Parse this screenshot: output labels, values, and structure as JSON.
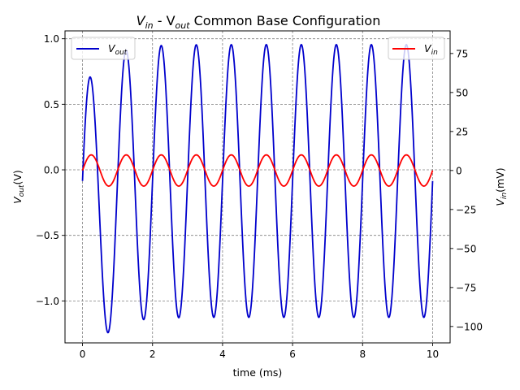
{
  "chart_data": {
    "type": "line",
    "title": {
      "main": "V",
      "sub1": "in",
      "mid": " - V",
      "sub2": "out",
      "tail": " Common Base Configuration"
    },
    "xlabel": "time (ms)",
    "ylabel_left": {
      "main": "V",
      "sub": "out",
      "tail": "(V)"
    },
    "ylabel_right": {
      "main": "V",
      "sub": "in",
      "tail": "(mV)"
    },
    "xlim": [
      -0.5,
      10.5
    ],
    "ylim_left": [
      -1.32,
      1.06
    ],
    "ylim_right": [
      -110.5,
      89.5
    ],
    "xticks": [
      0,
      2,
      4,
      6,
      8,
      10
    ],
    "xtick_labels": [
      "0",
      "2",
      "4",
      "6",
      "8",
      "10"
    ],
    "yticks_left": [
      1.0,
      0.5,
      0.0,
      -0.5,
      -1.0
    ],
    "ytick_labels_left": [
      "1.0",
      "0.5",
      "0.0",
      "−0.5",
      "−1.0"
    ],
    "yticks_right": [
      75,
      50,
      25,
      0,
      -25,
      -50,
      -75,
      -100
    ],
    "ytick_labels_right": [
      "75",
      "50",
      "25",
      "0",
      "−25",
      "−50",
      "−75",
      "−100"
    ],
    "grid": true,
    "series": [
      {
        "name": {
          "main": "V",
          "sub": "out"
        },
        "axis": "left",
        "color": "#0000cc",
        "frequency_khz": 1.0,
        "amplitude_V": 1.04,
        "dc_offset_V": -0.085,
        "transient_amplitude": 0.42,
        "transient_decay_ms": 0.55,
        "start_value_V": 0.0,
        "end_value_V": 0.49,
        "peaks_V": [
          0.72,
          0.96,
          0.96,
          0.96,
          0.96,
          0.96,
          0.96,
          0.96,
          0.96,
          0.96
        ],
        "troughs_V": [
          -1.21,
          -1.12,
          -1.12,
          -1.12,
          -1.12,
          -1.12,
          -1.12,
          -1.12,
          -1.12,
          -1.12
        ]
      },
      {
        "name": {
          "main": "V",
          "sub": "in"
        },
        "axis": "right",
        "color": "#ff0000",
        "frequency_khz": 1.0,
        "amplitude_mV": 10,
        "start_value_mV": 0,
        "end_value_mV": 0
      }
    ],
    "legend_left_placement": "upper-left",
    "legend_right_placement": "upper-right",
    "colors": {
      "axes": "#000000",
      "grid": "#808080"
    }
  }
}
